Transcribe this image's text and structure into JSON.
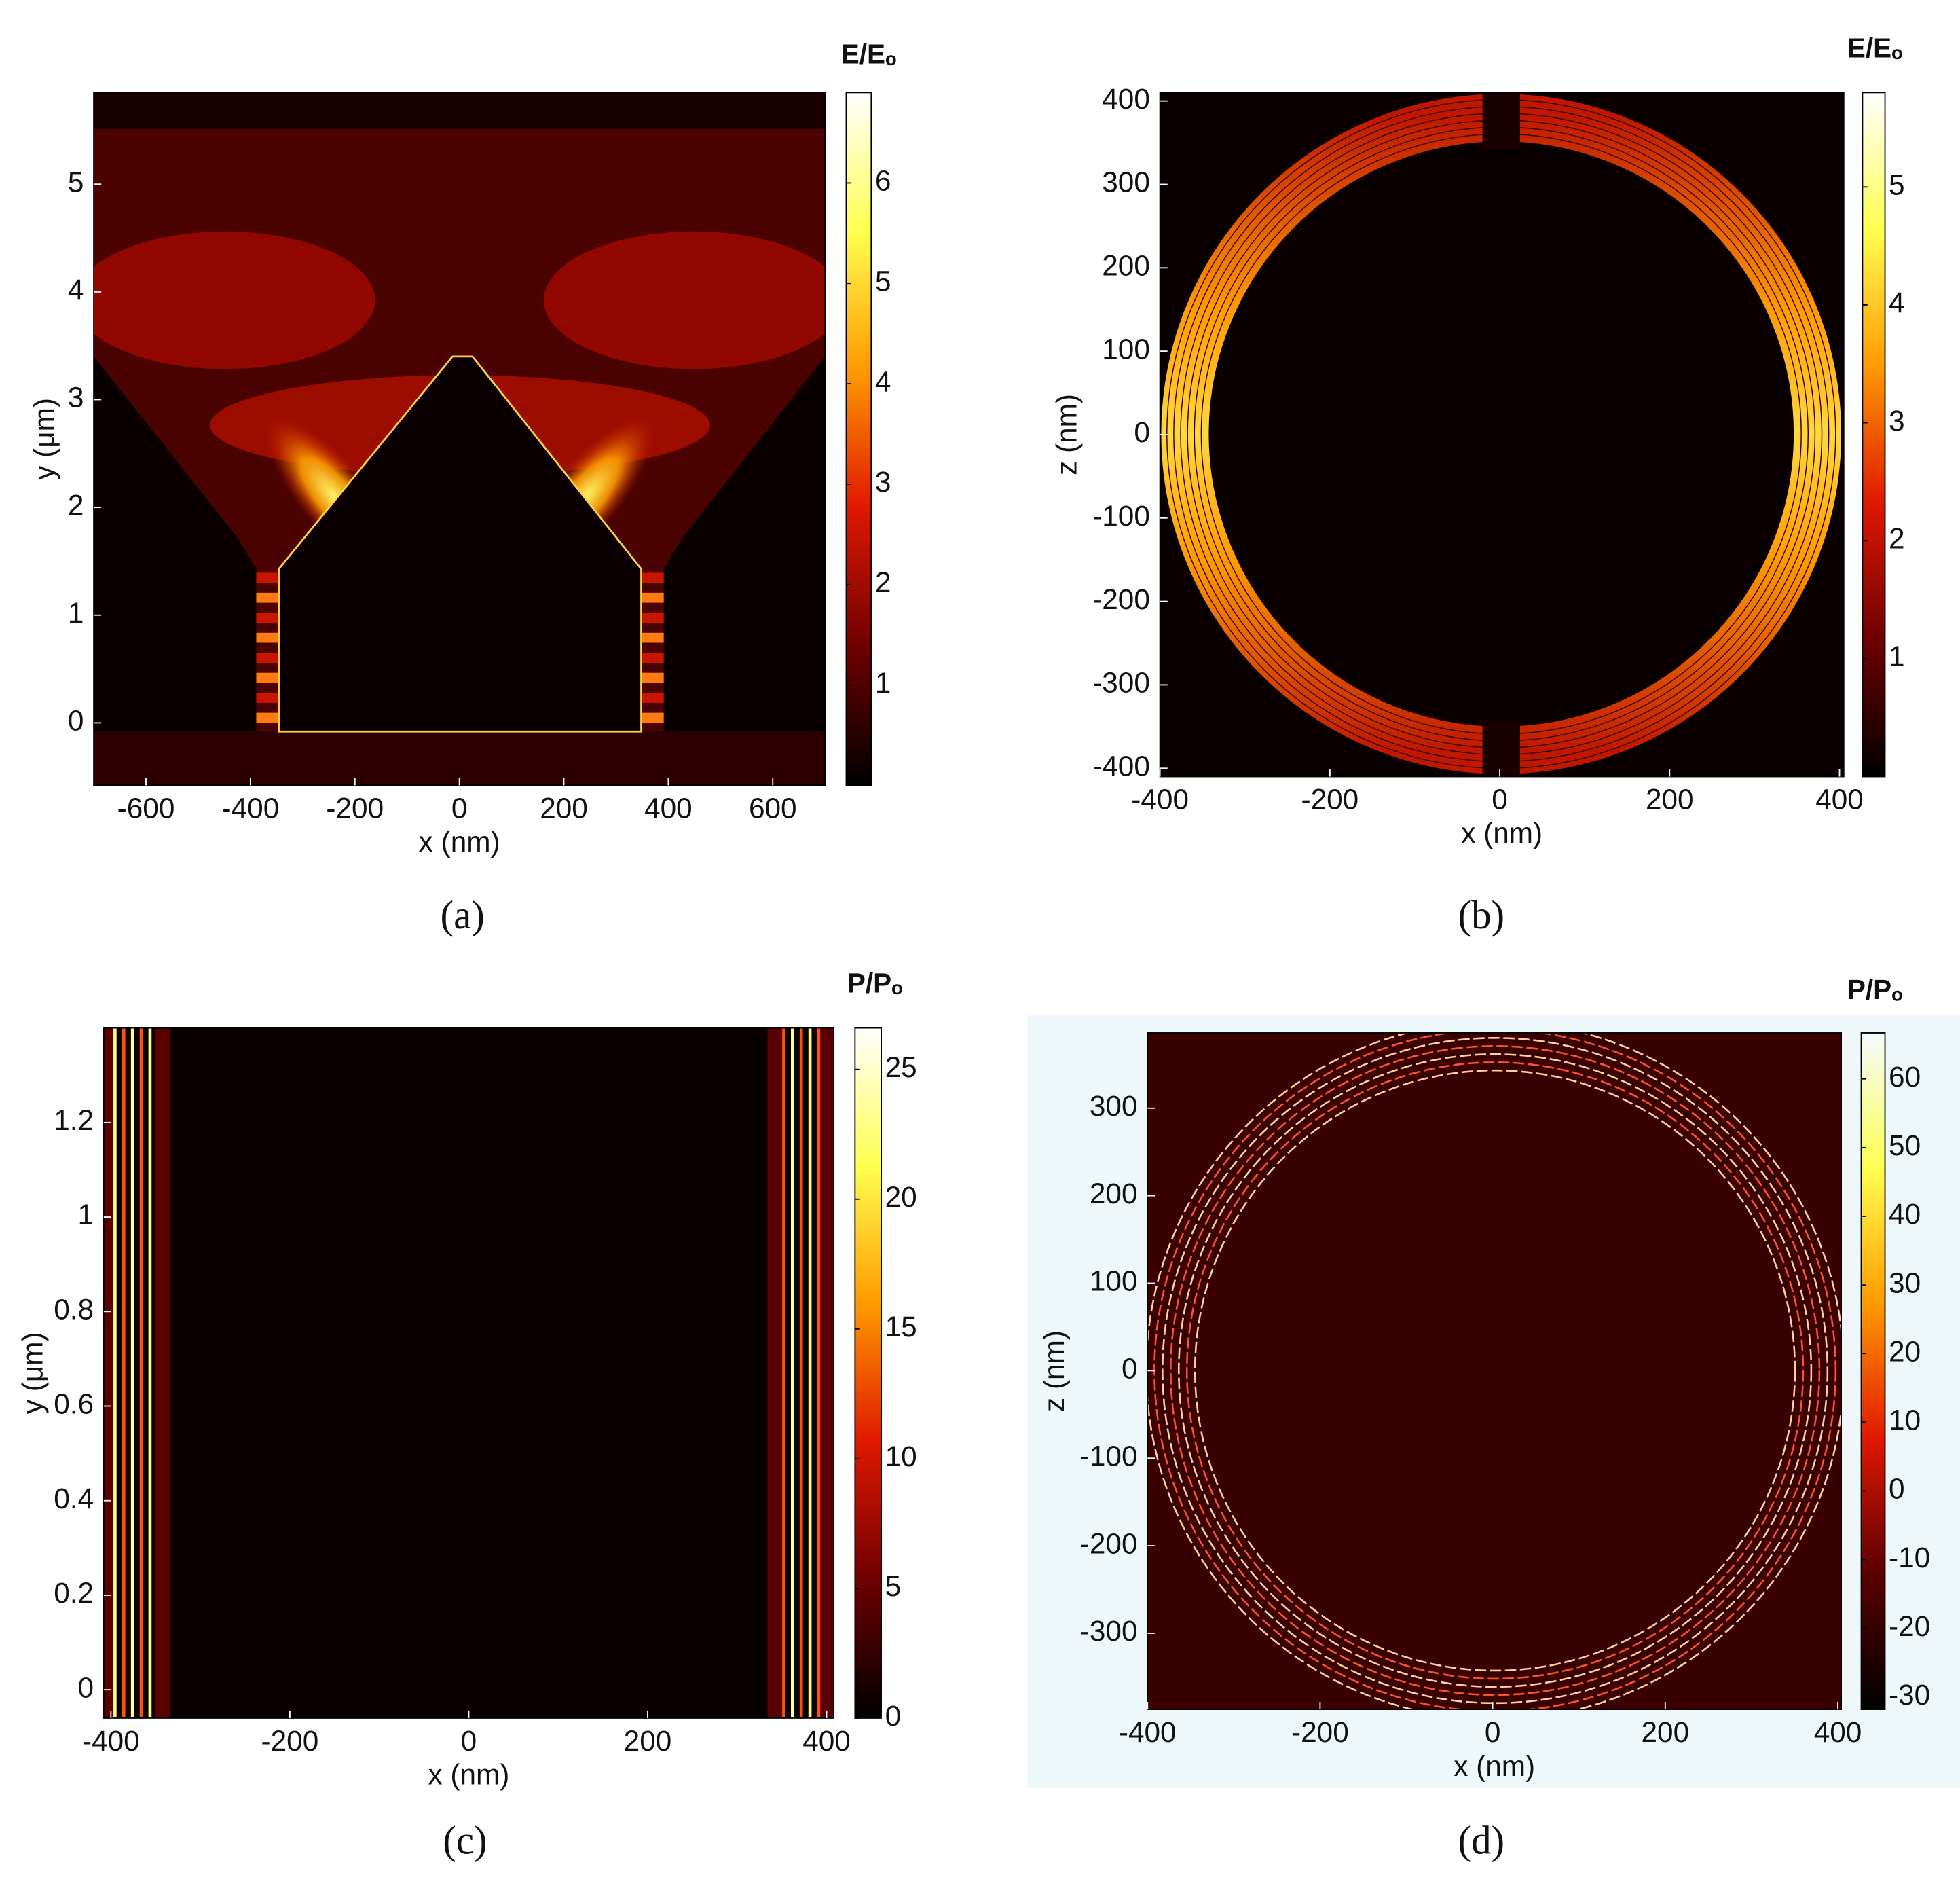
{
  "chart_data": [
    {
      "type": "heatmap",
      "panel_label": "(a)",
      "xlabel": "x (nm)",
      "ylabel": "y (μm)",
      "xlim": [
        -700,
        700
      ],
      "xticks": [
        -600,
        -400,
        -200,
        0,
        200,
        400,
        600
      ],
      "ylim": [
        -0.58,
        5.85
      ],
      "yticks": [
        0,
        1,
        2,
        3,
        4,
        5
      ],
      "colorbar": {
        "label": "E/Eₒ",
        "clim": [
          0,
          6.9
        ],
        "ticks": [
          1,
          2,
          3,
          4,
          5,
          6
        ]
      },
      "colormap": [
        "#000000",
        "#6e0000",
        "#e01800",
        "#ff9a00",
        "#ffff50",
        "#ffffff"
      ]
    },
    {
      "type": "heatmap",
      "panel_label": "(b)",
      "xlabel": "x (nm)",
      "ylabel": "z (nm)",
      "xlim": [
        -400,
        405
      ],
      "xticks": [
        -400,
        -200,
        0,
        200,
        400
      ],
      "ylim": [
        -410,
        410
      ],
      "yticks": [
        -400,
        -300,
        -200,
        -100,
        0,
        100,
        200,
        300,
        400
      ],
      "colorbar": {
        "label": "E/Eₒ",
        "clim": [
          0,
          5.8
        ],
        "ticks": [
          1,
          2,
          3,
          4,
          5
        ]
      },
      "colormap": [
        "#000000",
        "#6e0000",
        "#e01800",
        "#ff9a00",
        "#ffff50",
        "#ffffff"
      ]
    },
    {
      "type": "heatmap",
      "panel_label": "(c)",
      "xlabel": "x (nm)",
      "ylabel": "y (μm)",
      "xlim": [
        -408,
        408
      ],
      "xticks": [
        -400,
        -200,
        0,
        200,
        400
      ],
      "ylim": [
        -0.06,
        1.4
      ],
      "yticks": [
        0,
        0.2,
        0.4,
        0.6,
        0.8,
        1,
        1.2
      ],
      "colorbar": {
        "label": "P/Pₒ",
        "clim": [
          0,
          26.6
        ],
        "ticks": [
          0,
          5,
          10,
          15,
          20,
          25
        ]
      },
      "colormap": [
        "#000000",
        "#6e0000",
        "#e01800",
        "#ff9a00",
        "#ffff50",
        "#ffffff"
      ]
    },
    {
      "type": "heatmap",
      "panel_label": "(d)",
      "xlabel": "x (nm)",
      "ylabel": "z (nm)",
      "xlim": [
        -400,
        404
      ],
      "xticks": [
        -400,
        -200,
        0,
        200,
        400
      ],
      "ylim": [
        -387,
        386
      ],
      "yticks": [
        -300,
        -200,
        -100,
        0,
        100,
        200,
        300
      ],
      "colorbar": {
        "label": "P/Pₒ",
        "clim": [
          -31.8,
          66.7
        ],
        "ticks": [
          -30,
          -20,
          -10,
          0,
          10,
          20,
          30,
          40,
          50,
          60
        ]
      },
      "colormap": [
        "#000000",
        "#5a0000",
        "#e01800",
        "#ff9a00",
        "#ffff50",
        "#f4fbff"
      ]
    }
  ]
}
